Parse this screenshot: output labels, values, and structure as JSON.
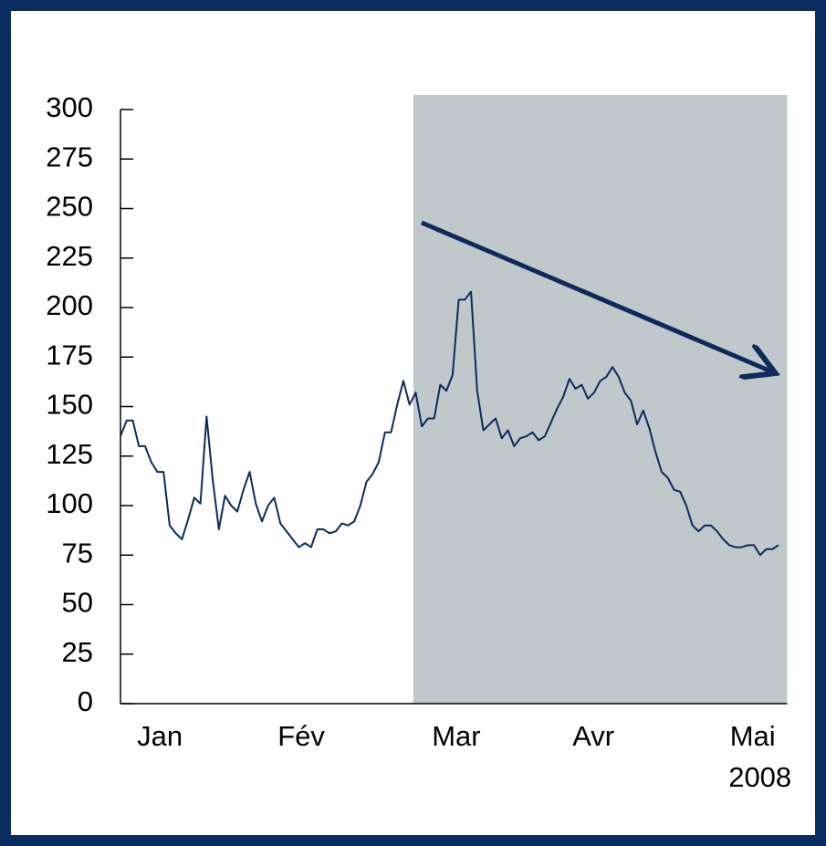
{
  "chart_data": {
    "type": "line",
    "x": [
      0,
      1,
      2,
      3,
      4,
      5,
      6,
      7,
      8,
      9,
      10,
      11,
      12,
      13,
      14,
      15,
      16,
      17,
      18,
      19,
      20,
      21,
      22,
      23,
      24,
      25,
      26,
      27,
      28,
      29,
      30,
      31,
      32,
      33,
      34,
      35,
      36,
      37,
      38,
      39,
      40,
      41,
      42,
      43,
      44,
      45,
      46,
      47,
      48,
      49,
      50,
      51,
      52,
      53,
      54,
      55,
      56,
      57,
      58,
      59,
      60,
      61,
      62,
      63,
      64,
      65,
      66,
      67,
      68,
      69,
      70,
      71,
      72,
      73,
      74,
      75,
      76,
      77,
      78,
      79,
      80,
      81,
      82,
      83,
      84,
      85,
      86,
      87,
      88,
      89,
      90,
      91,
      92,
      93,
      94,
      95,
      96,
      97,
      98,
      99,
      100,
      101,
      102,
      103,
      104,
      105,
      106,
      107
    ],
    "values": [
      135,
      143,
      143,
      130,
      130,
      122,
      117,
      117,
      90,
      86,
      83,
      93,
      104,
      101,
      145,
      113,
      88,
      105,
      100,
      97,
      108,
      117,
      101,
      92,
      100,
      104,
      91,
      87,
      83,
      79,
      81,
      79,
      88,
      88,
      86,
      87,
      91,
      90,
      92,
      100,
      112,
      116,
      122,
      137,
      137,
      151,
      163,
      151,
      157,
      140,
      144,
      144,
      161,
      158,
      166,
      204,
      204,
      208,
      158,
      138,
      141,
      144,
      134,
      138,
      130,
      134,
      135,
      137,
      133,
      135,
      142,
      149,
      155,
      164,
      159,
      161,
      154,
      157,
      163,
      165,
      170,
      165,
      157,
      153,
      141,
      148,
      139,
      127,
      117,
      114,
      108,
      107,
      100,
      90,
      87,
      90,
      90,
      87,
      83,
      80,
      79,
      79,
      80,
      80,
      75,
      78,
      78,
      80
    ],
    "color": "#0d2a5c",
    "xlim": [
      0,
      107
    ],
    "xticks": [
      {
        "value": 6.4,
        "label": "Jan"
      },
      {
        "value": 29.4,
        "label": "Fév"
      },
      {
        "value": 54.6,
        "label": "Mar"
      },
      {
        "value": 76.9,
        "label": "Avr"
      },
      {
        "value": 102.8,
        "label": "Mai"
      }
    ],
    "year_label": "2008",
    "ylim": [
      0,
      300
    ],
    "yticks": [
      0,
      25,
      50,
      75,
      100,
      125,
      150,
      175,
      200,
      225,
      250,
      275,
      300
    ],
    "highlight": {
      "x": [
        47.6,
        108.4
      ],
      "color": "#c1c8cb"
    }
  }
}
